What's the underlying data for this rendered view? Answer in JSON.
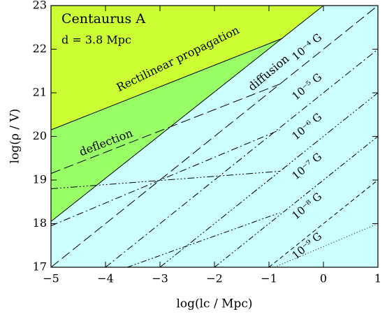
{
  "chart_data": {
    "type": "region-lines",
    "title": "Centaurus A",
    "subtitle": "d = 3.8 Mpc",
    "x_label": "log(lc /  Mpc)",
    "y_label": "log(ρ / V)",
    "xlim": [
      -5,
      1
    ],
    "ylim": [
      17,
      23
    ],
    "xticks": [
      {
        "value": -5,
        "label": "−5"
      },
      {
        "value": -4,
        "label": "−4"
      },
      {
        "value": -3,
        "label": "−3"
      },
      {
        "value": -2,
        "label": "−2"
      },
      {
        "value": -1,
        "label": "−1"
      },
      0,
      1
    ],
    "yticks": [
      17,
      18,
      19,
      20,
      21,
      22,
      23
    ],
    "regions": [
      {
        "name": "Rectilinear propagation",
        "color": "#ccff33",
        "x": [
          -5,
          -0.75,
          0,
          -5
        ],
        "y": [
          20.15,
          22.25,
          23,
          23
        ]
      },
      {
        "name": "deflection",
        "color": "#99ff66",
        "x": [
          -5,
          -0.75,
          -5
        ],
        "y": [
          20.15,
          22.25,
          18.05
        ]
      },
      {
        "name": "diffusion",
        "color": "#ccffff",
        "x": [
          -5,
          0,
          1,
          1,
          -5
        ],
        "y": [
          18.05,
          23,
          23,
          17,
          17
        ]
      }
    ],
    "series": [
      {
        "name": "10⁻⁴ G",
        "dash": "14 6",
        "x": [
          -5,
          -0.8,
          null,
          -5,
          1
        ],
        "values": [
          19.15,
          21.2,
          null,
          17,
          23
        ]
      },
      {
        "name": "10⁻⁵ G",
        "dash": "10 4 2 4",
        "x": [
          -5,
          -0.8,
          null,
          -4,
          1
        ],
        "values": [
          17.95,
          20.15,
          null,
          17,
          22
        ]
      },
      {
        "name": "10⁻⁶ G",
        "dash": "10 3 2 3 2 3 2 3",
        "x": [
          -5,
          -0.8,
          null,
          -3,
          1
        ],
        "values": [
          18.8,
          19.2,
          null,
          17,
          21
        ]
      },
      {
        "name": "10⁻⁷ G",
        "dash": "8 3 2 3 2 3",
        "x": [
          -3.6,
          -0.8,
          null,
          -2,
          1
        ],
        "values": [
          17,
          18.25,
          null,
          17,
          20
        ]
      },
      {
        "name": "10⁻⁸ G",
        "dash": "6 4",
        "x": [
          -1,
          1
        ],
        "values": [
          17,
          19
        ]
      },
      {
        "name": "10⁻⁹ G",
        "dash": "1 3",
        "x": [
          -0.9,
          1
        ],
        "values": [
          17,
          18
        ]
      }
    ]
  }
}
